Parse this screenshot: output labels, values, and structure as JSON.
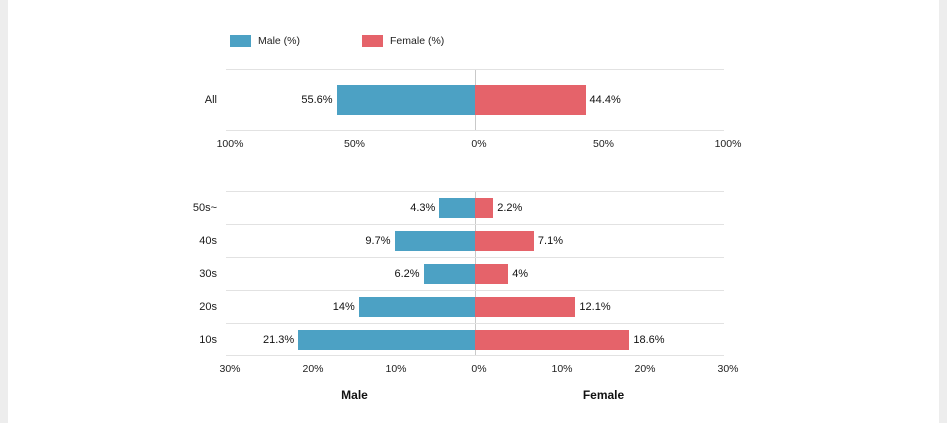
{
  "colors": {
    "male": "#4CA1C4",
    "female": "#E5636A",
    "grid": "#e2e2e2"
  },
  "legend": {
    "male_label": "Male (%)",
    "female_label": "Female (%)"
  },
  "chart_data": [
    {
      "type": "bar",
      "orientation": "horizontal-diverging",
      "title": "",
      "categories": [
        "All"
      ],
      "series": [
        {
          "name": "Male (%)",
          "values": [
            55.6
          ]
        },
        {
          "name": "Female (%)",
          "values": [
            44.4
          ]
        }
      ],
      "value_labels": {
        "male": [
          "55.6%"
        ],
        "female": [
          "44.4%"
        ]
      },
      "axis_ticks": [
        "100%",
        "50%",
        "0%",
        "50%",
        "100%"
      ],
      "axis_max": 100,
      "grid": true,
      "legend_position": "top"
    },
    {
      "type": "bar",
      "orientation": "horizontal-diverging",
      "title": "",
      "categories": [
        "50s~",
        "40s",
        "30s",
        "20s",
        "10s"
      ],
      "series": [
        {
          "name": "Male (%)",
          "values": [
            4.3,
            9.7,
            6.2,
            14,
            21.3
          ]
        },
        {
          "name": "Female (%)",
          "values": [
            2.2,
            7.1,
            4,
            12.1,
            18.6
          ]
        }
      ],
      "value_labels": {
        "male": [
          "4.3%",
          "9.7%",
          "6.2%",
          "14%",
          "21.3%"
        ],
        "female": [
          "2.2%",
          "7.1%",
          "4%",
          "12.1%",
          "18.6%"
        ]
      },
      "axis_ticks": [
        "30%",
        "20%",
        "10%",
        "0%",
        "10%",
        "20%",
        "30%"
      ],
      "axis_max": 30,
      "xlabel_left": "Male",
      "xlabel_right": "Female",
      "grid": true
    }
  ]
}
